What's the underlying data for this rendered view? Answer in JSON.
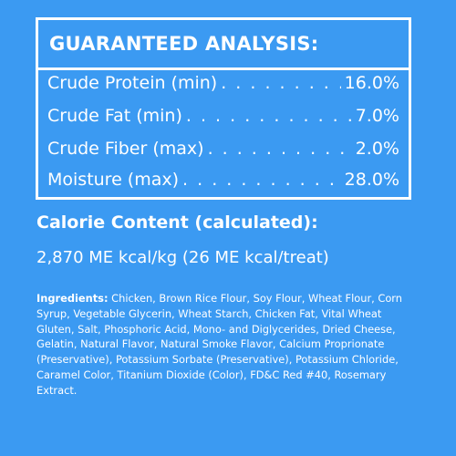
{
  "analysis": {
    "title": "GUARANTEED ANALYSIS:",
    "rows": [
      {
        "label": "Crude Protein (min)",
        "dots": ". . . . . . . . . . . . . . . . . . . .",
        "value": "16.0%"
      },
      {
        "label": "Crude Fat (min)",
        "dots": ". . . . . . . . . . . . . . . . . . . . . . . . . . . .",
        "value": "7.0%"
      },
      {
        "label": "Crude Fiber (max)",
        "dots": ". . . . . . . . . . . . . . . . . . . . . .",
        "value": "2.0%"
      },
      {
        "label": "Moisture (max)",
        "dots": ". . . . . . . . . . . . . . . . . . . . . . . . .",
        "value": "28.0%"
      }
    ]
  },
  "calorie": {
    "title": "Calorie Content (calculated):",
    "value": "2,870 ME kcal/kg (26 ME kcal/treat)"
  },
  "ingredients": {
    "label": "Ingredients:",
    "text": "Chicken, Brown Rice Flour, Soy Flour, Wheat Flour, Corn Syrup, Vegetable Glycerin, Wheat Starch, Chicken Fat, Vital Wheat Gluten, Salt, Phosphoric Acid, Mono- and Diglycerides, Dried Cheese, Gelatin, Natural Flavor, Natural Smoke Flavor, Calcium Proprionate (Preservative), Potassium Sorbate (Preservative), Potassium Chloride, Caramel Color, Titanium Dioxide (Color), FD&C Red #40, Rosemary Extract."
  },
  "colors": {
    "background": "#3b9af2",
    "text": "#ffffff"
  }
}
